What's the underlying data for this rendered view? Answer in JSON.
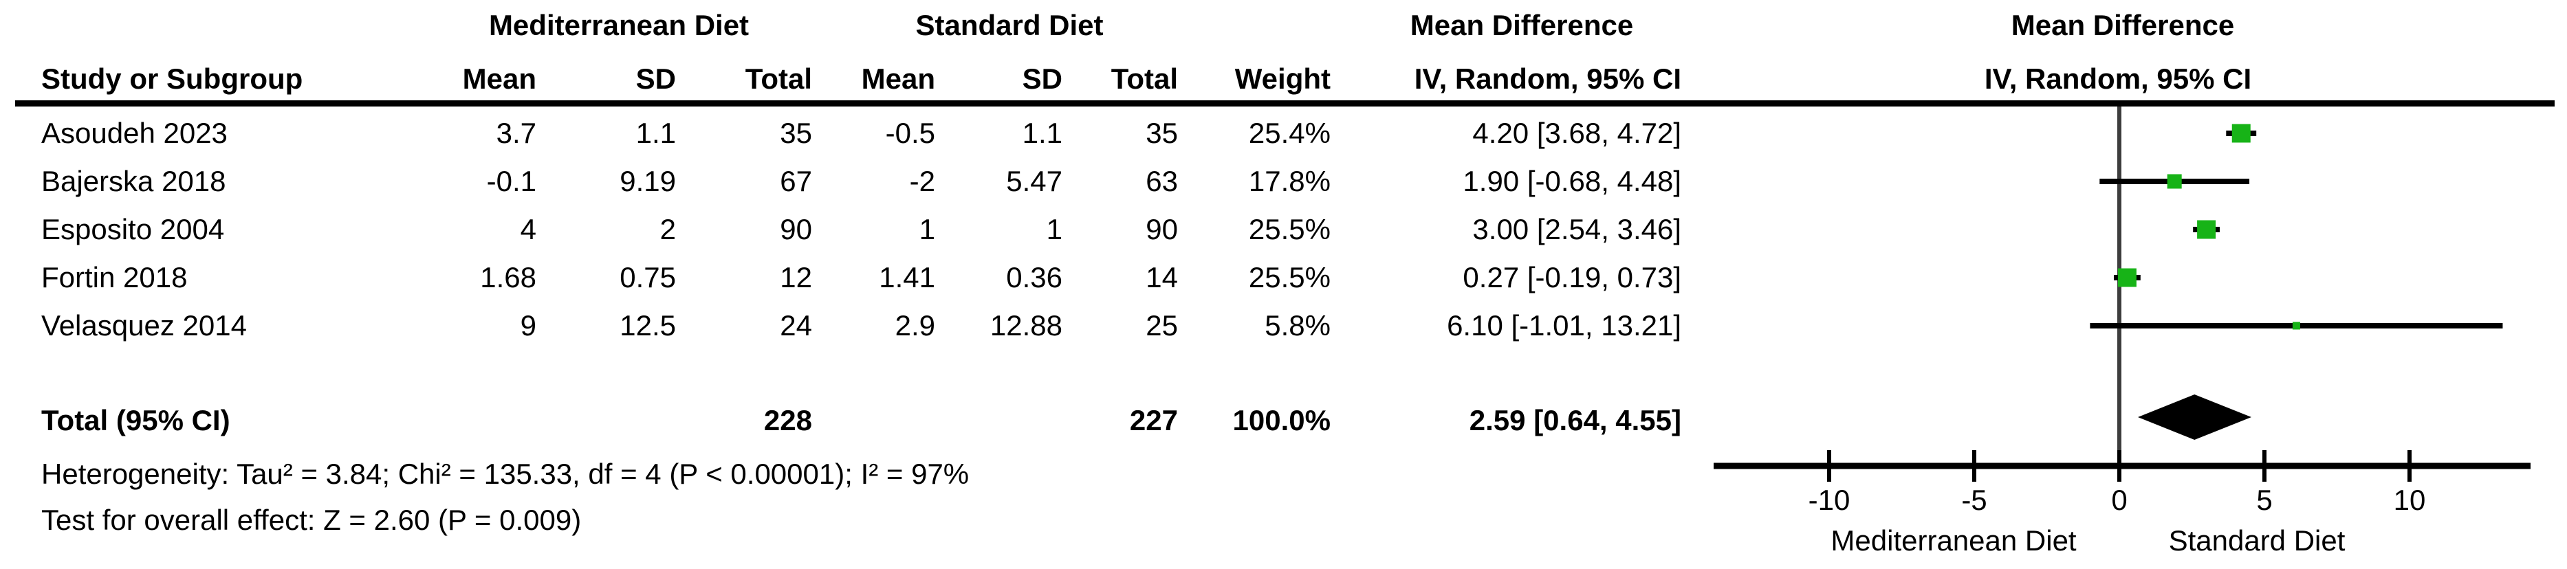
{
  "headers": {
    "group": {
      "experimental": "Mediterranean Diet",
      "control": "Standard Diet",
      "effect_text": "Mean Difference",
      "effect_plot": "Mean Difference"
    },
    "columns": {
      "study": "Study or Subgroup",
      "exp_mean": "Mean",
      "exp_sd": "SD",
      "exp_total": "Total",
      "ctrl_mean": "Mean",
      "ctrl_sd": "SD",
      "ctrl_total": "Total",
      "weight": "Weight",
      "ci": "IV, Random, 95% CI",
      "ci_plot": "IV, Random, 95% CI"
    }
  },
  "chart_data": {
    "type": "forest",
    "effect_measure": "Mean Difference",
    "method": "IV, Random, 95% CI",
    "studies": [
      {
        "study": "Asoudeh 2023",
        "exp_mean": "3.7",
        "exp_sd": "1.1",
        "exp_total": "35",
        "ctrl_mean": "-0.5",
        "ctrl_sd": "1.1",
        "ctrl_total": "35",
        "weight": "25.4%",
        "weight_value": 25.4,
        "md": 4.2,
        "ci_low": 3.68,
        "ci_high": 4.72,
        "ci_label": "4.20 [3.68, 4.72]"
      },
      {
        "study": "Bajerska 2018",
        "exp_mean": "-0.1",
        "exp_sd": "9.19",
        "exp_total": "67",
        "ctrl_mean": "-2",
        "ctrl_sd": "5.47",
        "ctrl_total": "63",
        "weight": "17.8%",
        "weight_value": 17.8,
        "md": 1.9,
        "ci_low": -0.68,
        "ci_high": 4.48,
        "ci_label": "1.90 [-0.68, 4.48]"
      },
      {
        "study": "Esposito 2004",
        "exp_mean": "4",
        "exp_sd": "2",
        "exp_total": "90",
        "ctrl_mean": "1",
        "ctrl_sd": "1",
        "ctrl_total": "90",
        "weight": "25.5%",
        "weight_value": 25.5,
        "md": 3.0,
        "ci_low": 2.54,
        "ci_high": 3.46,
        "ci_label": "3.00 [2.54, 3.46]"
      },
      {
        "study": "Fortin 2018",
        "exp_mean": "1.68",
        "exp_sd": "0.75",
        "exp_total": "12",
        "ctrl_mean": "1.41",
        "ctrl_sd": "0.36",
        "ctrl_total": "14",
        "weight": "25.5%",
        "weight_value": 25.5,
        "md": 0.27,
        "ci_low": -0.19,
        "ci_high": 0.73,
        "ci_label": "0.27 [-0.19, 0.73]"
      },
      {
        "study": "Velasquez 2014",
        "exp_mean": "9",
        "exp_sd": "12.5",
        "exp_total": "24",
        "ctrl_mean": "2.9",
        "ctrl_sd": "12.88",
        "ctrl_total": "25",
        "weight": "5.8%",
        "weight_value": 5.8,
        "md": 6.1,
        "ci_low": -1.01,
        "ci_high": 13.21,
        "ci_label": "6.10 [-1.01, 13.21]"
      }
    ],
    "total": {
      "label": "Total (95% CI)",
      "exp_total": "228",
      "ctrl_total": "227",
      "weight": "100.0%",
      "ci_label": "2.59 [0.64, 4.55]",
      "estimate": 2.59,
      "ci_low": 0.64,
      "ci_high": 4.55
    },
    "heterogeneity": "Heterogeneity: Tau² = 3.84; Chi² = 135.33, df = 4 (P < 0.00001); I² = 97%",
    "overall_effect": "Test for overall effect: Z = 2.60 (P = 0.009)",
    "axis": {
      "ticks": [
        -10,
        -5,
        0,
        5,
        10
      ],
      "range": [
        -14,
        14.2
      ],
      "left_label": "Mediterranean Diet",
      "right_label": "Standard Diet"
    },
    "colors": {
      "marker": "#17b317",
      "line": "#000000",
      "zero_line": "#3d3d3d"
    }
  }
}
